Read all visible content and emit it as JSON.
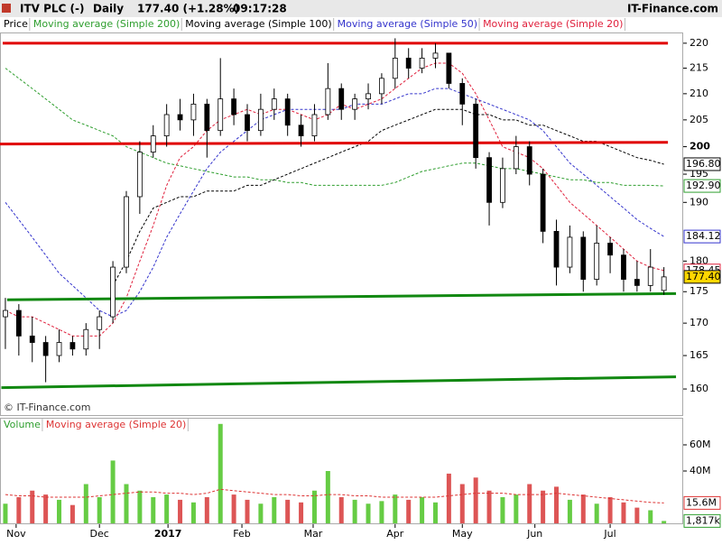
{
  "header": {
    "symbol": "ITV PLC (-)",
    "interval": "Daily",
    "quote": "177.40 (+1.28%)",
    "time": "09:17:28",
    "brand": "IT-Finance.com"
  },
  "chart_data": [
    {
      "type": "candlestick",
      "log_y": true,
      "watermark": "© IT-Finance.com",
      "xlim": [
        -0.4,
        50.3
      ],
      "ylim": [
        156.2,
        222
      ],
      "yticks": [
        160,
        165,
        170,
        175,
        180,
        190,
        195,
        200,
        205,
        210,
        215,
        220
      ],
      "emphasis_tick": 200,
      "price": {
        "name": "Price",
        "up_color": "#ffffff",
        "down_color": "#000000",
        "label_color": "#ffd700",
        "end_label": {
          "value": 177.4,
          "label": "177.40"
        },
        "ohlc": [
          [
            171,
            174,
            166,
            172
          ],
          [
            172,
            173,
            165,
            168
          ],
          [
            168,
            171,
            164,
            167
          ],
          [
            167,
            168,
            161,
            165
          ],
          [
            165,
            169,
            164,
            167
          ],
          [
            167,
            168,
            165,
            166
          ],
          [
            166,
            170,
            165,
            169
          ],
          [
            169,
            172,
            166,
            171
          ],
          [
            171,
            180,
            170,
            179
          ],
          [
            179,
            192,
            178,
            191
          ],
          [
            191,
            201,
            188,
            199
          ],
          [
            199,
            204,
            198,
            202
          ],
          [
            202,
            208,
            200,
            206
          ],
          [
            206,
            209,
            203,
            205
          ],
          [
            205,
            210,
            202,
            208
          ],
          [
            208,
            209,
            198,
            203
          ],
          [
            203,
            217,
            202,
            209
          ],
          [
            209,
            211,
            204,
            206
          ],
          [
            206,
            208,
            201,
            203
          ],
          [
            203,
            210,
            202,
            207
          ],
          [
            207,
            211,
            205,
            209
          ],
          [
            209,
            210,
            202,
            204
          ],
          [
            204,
            206,
            200,
            202
          ],
          [
            202,
            208,
            201,
            206
          ],
          [
            206,
            216,
            205,
            211
          ],
          [
            211,
            212,
            205,
            207
          ],
          [
            207,
            210,
            205,
            209
          ],
          [
            209,
            212,
            207,
            210
          ],
          [
            210,
            214,
            208,
            213
          ],
          [
            213,
            221,
            211,
            217
          ],
          [
            217,
            219,
            213,
            215
          ],
          [
            215,
            219,
            214,
            217
          ],
          [
            217,
            220,
            215,
            218
          ],
          [
            218,
            218,
            211,
            212
          ],
          [
            212,
            213,
            204,
            208
          ],
          [
            208,
            209,
            196,
            198
          ],
          [
            198,
            199,
            186,
            190
          ],
          [
            190,
            198,
            189,
            196
          ],
          [
            196,
            202,
            195,
            200
          ],
          [
            200,
            201,
            193,
            195
          ],
          [
            195,
            196,
            183,
            185
          ],
          [
            185,
            187,
            176,
            179
          ],
          [
            179,
            186,
            178,
            184
          ],
          [
            184,
            185,
            175,
            177
          ],
          [
            177,
            186,
            176,
            183
          ],
          [
            183,
            184,
            178,
            181
          ],
          [
            181,
            182,
            175,
            177
          ],
          [
            177,
            180,
            175,
            176
          ],
          [
            176,
            182,
            175,
            179
          ],
          [
            175.2,
            179,
            174.5,
            177.4
          ]
        ]
      },
      "series": [
        {
          "name": "Moving average (Simple 200)",
          "color": "#2e9e2e",
          "end_label": {
            "value": 192.9,
            "label": "192.90"
          },
          "values": [
            215,
            213,
            211,
            209,
            207,
            205,
            204,
            203,
            202,
            200,
            199,
            198,
            197,
            196.5,
            196,
            195.5,
            195,
            194.5,
            194.5,
            194,
            194,
            193.5,
            193.5,
            193,
            193,
            193,
            193,
            193,
            193,
            193.5,
            194.5,
            195.5,
            196,
            196.5,
            197,
            197,
            196.5,
            196,
            196,
            195.5,
            195,
            194.5,
            194,
            194,
            193.5,
            193.5,
            193,
            193,
            193,
            192.9
          ]
        },
        {
          "name": "Moving average (Simple 100)",
          "color": "#000000",
          "end_label": {
            "value": 196.8,
            "label": "196.80"
          },
          "values": [
            null,
            null,
            null,
            null,
            null,
            null,
            null,
            null,
            176,
            180,
            185,
            189,
            190,
            191,
            191,
            192,
            192,
            192,
            193,
            193,
            194,
            195,
            196,
            197,
            198,
            199,
            200,
            201,
            203,
            204,
            205,
            206,
            207,
            207,
            207,
            206,
            206,
            205,
            205,
            204,
            204,
            203,
            202,
            201,
            201,
            200,
            199,
            198,
            197.5,
            196.8
          ]
        },
        {
          "name": "Moving average (Simple 50)",
          "color": "#3333cc",
          "end_label": {
            "value": 184.12,
            "label": "184.12"
          },
          "values": [
            190,
            187,
            184,
            181,
            178,
            176,
            174,
            172,
            171,
            172,
            175,
            179,
            184,
            188,
            192,
            196,
            199,
            201,
            203,
            205,
            206,
            207,
            207,
            207,
            207,
            207,
            208,
            208,
            208,
            209,
            210,
            210,
            211,
            211,
            210,
            209,
            208,
            207,
            206,
            205,
            203,
            200,
            197,
            195,
            193,
            191,
            189,
            187,
            185.5,
            184.12
          ]
        },
        {
          "name": "Moving average (Simple 20)",
          "color": "#e0203c",
          "end_label": {
            "value": 178.45,
            "label": "178.45"
          },
          "values": [
            172,
            171,
            171,
            170,
            169,
            168,
            168,
            168,
            170,
            174,
            180,
            186,
            193,
            198,
            200,
            203,
            205,
            206,
            207,
            206,
            207,
            207,
            206,
            205,
            206,
            208,
            207,
            208,
            209,
            211,
            213,
            215,
            216,
            216,
            214,
            210,
            205,
            200,
            199,
            198,
            196,
            193,
            190,
            188,
            186,
            184,
            182,
            180,
            179,
            178.45
          ]
        }
      ],
      "lines": [
        {
          "color": "#e00000",
          "x": [
            -0.2,
            49.3
          ],
          "values": [
            220,
            220
          ]
        },
        {
          "color": "#e00000",
          "x": [
            -0.4,
            49.3
          ],
          "values": [
            200.5,
            200.8
          ]
        },
        {
          "color": "#118811",
          "x": [
            0.13,
            49.9
          ],
          "values": [
            173.7,
            174.7
          ]
        },
        {
          "color": "#118811",
          "x": [
            -0.3,
            49.9
          ],
          "values": [
            160.2,
            161.8
          ]
        }
      ]
    },
    {
      "type": "bar",
      "title": "Volume",
      "up_color": "#66cc44",
      "down_color": "#dd5555",
      "xlim": [
        -0.4,
        50.3
      ],
      "ylim": [
        0,
        80000000
      ],
      "yticks": [
        {
          "value": 40000000,
          "label": "40M"
        },
        {
          "value": 60000000,
          "label": "60M"
        }
      ],
      "xticks": [
        {
          "value": 0.8,
          "label": "Nov"
        },
        {
          "value": 7,
          "label": "Dec"
        },
        {
          "value": 12.1,
          "label": "2017"
        },
        {
          "value": 17.6,
          "label": "Feb"
        },
        {
          "value": 22.9,
          "label": "Mar"
        },
        {
          "value": 29,
          "label": "Apr"
        },
        {
          "value": 34,
          "label": "May"
        },
        {
          "value": 39.4,
          "label": "Jun"
        },
        {
          "value": 45,
          "label": "Jul"
        }
      ],
      "end_label": {
        "value": 1817000,
        "label": "1,817k"
      },
      "values": [
        15000000,
        20000000,
        25000000,
        22000000,
        18000000,
        14000000,
        30000000,
        20000000,
        48000000,
        30000000,
        25000000,
        20000000,
        22000000,
        18000000,
        16000000,
        20000000,
        76000000,
        22000000,
        18000000,
        15000000,
        20000000,
        18000000,
        16000000,
        25000000,
        40000000,
        20000000,
        18000000,
        15000000,
        17000000,
        22000000,
        18000000,
        20000000,
        16000000,
        38000000,
        30000000,
        35000000,
        25000000,
        20000000,
        22000000,
        30000000,
        25000000,
        28000000,
        18000000,
        22000000,
        15000000,
        20000000,
        16000000,
        12000000,
        10000000,
        1817000
      ],
      "ma": {
        "name": "Moving average (Simple 20)",
        "color": "#dd3333",
        "end_label": {
          "value": 15600000,
          "label": "15.6M"
        },
        "values": [
          22000000,
          21000000,
          21000000,
          20000000,
          20000000,
          20000000,
          20000000,
          21000000,
          22000000,
          23000000,
          24000000,
          24000000,
          23000000,
          23000000,
          22000000,
          23000000,
          26000000,
          25000000,
          24000000,
          23000000,
          22000000,
          22000000,
          21000000,
          21000000,
          22000000,
          22000000,
          21000000,
          21000000,
          20000000,
          20000000,
          20000000,
          20000000,
          20000000,
          21000000,
          22000000,
          23000000,
          23000000,
          23000000,
          22000000,
          22000000,
          22000000,
          23000000,
          22000000,
          21000000,
          20000000,
          19000000,
          18000000,
          17000000,
          16000000,
          15600000
        ]
      }
    }
  ]
}
